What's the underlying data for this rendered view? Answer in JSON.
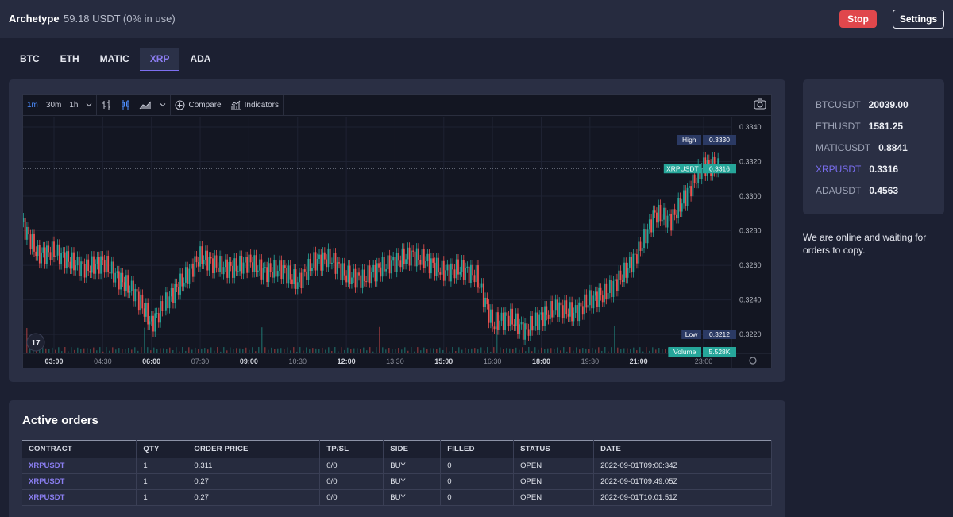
{
  "header": {
    "app_name": "Archetype",
    "balance": "59.18 USDT (0% in use)",
    "stop_label": "Stop",
    "settings_label": "Settings"
  },
  "tabs": [
    {
      "label": "BTC",
      "active": false
    },
    {
      "label": "ETH",
      "active": false
    },
    {
      "label": "MATIC",
      "active": false
    },
    {
      "label": "XRP",
      "active": true
    },
    {
      "label": "ADA",
      "active": false
    }
  ],
  "chart_toolbar": {
    "intervals": [
      "1m",
      "30m",
      "1h"
    ],
    "active_interval": "1m",
    "compare_label": "Compare",
    "indicators_label": "Indicators"
  },
  "chart_data": {
    "type": "line",
    "symbol": "XRPUSDT",
    "x_ticks": [
      "03:00",
      "04:30",
      "06:00",
      "07:30",
      "09:00",
      "10:30",
      "12:00",
      "13:30",
      "15:00",
      "16:30",
      "18:00",
      "19:30",
      "21:00",
      "23:00"
    ],
    "y_ticks": [
      "0.3340",
      "0.3320",
      "0.3300",
      "0.3280",
      "0.3260",
      "0.3240",
      "0.3220"
    ],
    "ylim": [
      0.3209,
      0.3346
    ],
    "x": [
      "02:00",
      "02:30",
      "03:00",
      "03:30",
      "04:00",
      "04:30",
      "05:00",
      "05:30",
      "06:00",
      "06:30",
      "07:00",
      "07:30",
      "08:00",
      "08:30",
      "09:00",
      "09:30",
      "10:00",
      "10:30",
      "11:00",
      "11:30",
      "12:00",
      "12:30",
      "13:00",
      "13:30",
      "14:00",
      "14:30",
      "15:00",
      "15:30",
      "16:00",
      "16:30",
      "17:00",
      "17:30",
      "18:00",
      "18:30",
      "19:00",
      "19:30",
      "20:00",
      "20:30",
      "21:00",
      "21:30",
      "22:00",
      "22:30",
      "23:00",
      "23:30"
    ],
    "values": [
      0.3285,
      0.3266,
      0.3268,
      0.3262,
      0.3258,
      0.3262,
      0.3252,
      0.3244,
      0.3226,
      0.324,
      0.3252,
      0.3265,
      0.326,
      0.3258,
      0.3262,
      0.3256,
      0.3258,
      0.325,
      0.3262,
      0.3264,
      0.3254,
      0.3252,
      0.3258,
      0.3262,
      0.3266,
      0.3262,
      0.3256,
      0.3258,
      0.3254,
      0.3226,
      0.323,
      0.3222,
      0.323,
      0.3236,
      0.3232,
      0.324,
      0.3244,
      0.3254,
      0.3268,
      0.329,
      0.3286,
      0.3302,
      0.3318,
      0.3316
    ],
    "current_label": "XRPUSDT",
    "current_value": "0.3316",
    "high_label": "High",
    "high_value": "0.3330",
    "low_label": "Low",
    "low_value": "0.3212",
    "volume_label": "Volume",
    "volume_value": "5.528K",
    "colors": {
      "up": "#26a69a",
      "down": "#ef5350",
      "current": "#26a69a",
      "high_low": "#2b3a64"
    }
  },
  "tickers": [
    {
      "symbol": "BTCUSDT",
      "price": "20039.00",
      "active": false
    },
    {
      "symbol": "ETHUSDT",
      "price": "1581.25",
      "active": false
    },
    {
      "symbol": "MATICUSDT",
      "price": "0.8841",
      "active": false
    },
    {
      "symbol": "XRPUSDT",
      "price": "0.3316",
      "active": true
    },
    {
      "symbol": "ADAUSDT",
      "price": "0.4563",
      "active": false
    }
  ],
  "status_message": "We are online and waiting for orders to copy.",
  "orders": {
    "title": "Active orders",
    "columns": [
      "CONTRACT",
      "QTY",
      "ORDER PRICE",
      "TP/SL",
      "SIDE",
      "FILLED",
      "STATUS",
      "DATE"
    ],
    "rows": [
      [
        "XRPUSDT",
        "1",
        "0.311",
        "0/0",
        "BUY",
        "0",
        "OPEN",
        "2022-09-01T09:06:34Z"
      ],
      [
        "XRPUSDT",
        "1",
        "0.27",
        "0/0",
        "BUY",
        "0",
        "OPEN",
        "2022-09-01T09:49:05Z"
      ],
      [
        "XRPUSDT",
        "1",
        "0.27",
        "0/0",
        "BUY",
        "0",
        "OPEN",
        "2022-09-01T10:01:51Z"
      ]
    ]
  }
}
